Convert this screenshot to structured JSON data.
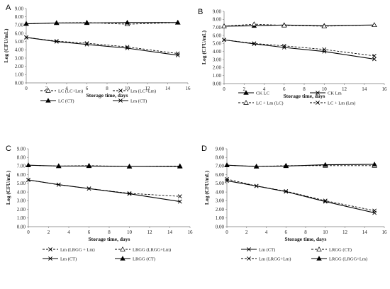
{
  "chart_data": [
    {
      "panel": "A",
      "type": "line",
      "xlabel": "Storage time, days",
      "ylabel": "Log (CFU/mL)",
      "xlim": [
        0,
        16
      ],
      "xticks": [
        0,
        2,
        4,
        6,
        8,
        10,
        12,
        14,
        16
      ],
      "ylim": [
        0,
        9
      ],
      "yticks": [
        "0.00",
        "1.00",
        "2.00",
        "3.00",
        "4.00",
        "5.00",
        "6.00",
        "7.00",
        "8.00",
        "9.00"
      ],
      "x": [
        0,
        3,
        6,
        10,
        15
      ],
      "legend_position": "bottom",
      "series": [
        {
          "name": "LC (LC+Lm)",
          "style": "dash",
          "marker": "triangle-open",
          "values": [
            7.15,
            7.25,
            7.3,
            7.1,
            7.3
          ]
        },
        {
          "name": "Lm (LC+Lm)",
          "style": "dash",
          "marker": "x",
          "values": [
            5.5,
            5.05,
            4.8,
            4.35,
            3.55
          ]
        },
        {
          "name": "LC (CT)",
          "style": "solid",
          "marker": "triangle-filled",
          "values": [
            7.15,
            7.25,
            7.25,
            7.3,
            7.3
          ]
        },
        {
          "name": "Lm (CT)",
          "style": "solid",
          "marker": "x",
          "values": [
            5.5,
            5.0,
            4.65,
            4.2,
            3.35
          ]
        }
      ]
    },
    {
      "panel": "B",
      "type": "line",
      "xlabel": "Storage time, days",
      "ylabel": "Log (CFU/mL)",
      "xlim": [
        0,
        16
      ],
      "xticks": [
        0,
        2,
        4,
        6,
        8,
        10,
        12,
        14,
        16
      ],
      "ylim": [
        0,
        9
      ],
      "yticks": [
        "0.00",
        "1.00",
        "2.00",
        "3.00",
        "4.00",
        "5.00",
        "6.00",
        "7.00",
        "8.00",
        "9.00"
      ],
      "x": [
        0,
        3,
        6,
        10,
        15
      ],
      "legend_position": "bottom",
      "series": [
        {
          "name": "CK LC",
          "style": "solid",
          "marker": "triangle-filled",
          "values": [
            7.15,
            7.2,
            7.3,
            7.2,
            7.3
          ]
        },
        {
          "name": "CK Lm",
          "style": "solid",
          "marker": "x",
          "values": [
            5.45,
            4.95,
            4.5,
            4.0,
            3.05
          ]
        },
        {
          "name": "LC + Lm (LC)",
          "style": "dash",
          "marker": "triangle-open",
          "values": [
            7.15,
            7.4,
            7.25,
            7.15,
            7.3
          ]
        },
        {
          "name": "LC + Lm (Lm)",
          "style": "dash",
          "marker": "x",
          "values": [
            5.45,
            5.0,
            4.7,
            4.25,
            3.45
          ]
        }
      ]
    },
    {
      "panel": "C",
      "type": "line",
      "xlabel": "Storage time, days",
      "ylabel": "Log (CFU/mL)",
      "xlim": [
        0,
        16
      ],
      "xticks": [
        0,
        2,
        4,
        6,
        8,
        10,
        12,
        14,
        16
      ],
      "ylim": [
        0,
        9
      ],
      "yticks": [
        "0.00",
        "1.00",
        "2.00",
        "3.00",
        "4.00",
        "5.00",
        "6.00",
        "7.00",
        "8.00",
        "9.00"
      ],
      "x": [
        0,
        3,
        6,
        10,
        15
      ],
      "legend_position": "bottom",
      "series": [
        {
          "name": "Lm (LRGG + Lm)",
          "style": "dash",
          "marker": "x",
          "values": [
            5.4,
            4.85,
            4.4,
            3.85,
            3.5
          ]
        },
        {
          "name": "LRGG (LRGG+Lm)",
          "style": "dash",
          "marker": "triangle-open",
          "values": [
            7.1,
            7.0,
            7.05,
            6.95,
            7.0
          ]
        },
        {
          "name": "Lm (CT)",
          "style": "solid",
          "marker": "x",
          "values": [
            5.4,
            4.85,
            4.4,
            3.8,
            2.9
          ]
        },
        {
          "name": "LRGG (CT)",
          "style": "solid",
          "marker": "triangle-filled",
          "values": [
            7.1,
            7.0,
            7.0,
            6.95,
            6.95
          ]
        }
      ]
    },
    {
      "panel": "D",
      "type": "line",
      "xlabel": "Storage time, days",
      "ylabel": "Log (CFU/mL)",
      "xlim": [
        0,
        16
      ],
      "xticks": [
        0,
        2,
        4,
        6,
        8,
        10,
        12,
        14,
        16
      ],
      "ylim": [
        0,
        9
      ],
      "yticks": [
        "0.00",
        "1.00",
        "2.00",
        "3.00",
        "4.00",
        "5.00",
        "6.00",
        "7.00",
        "8.00",
        "9.00"
      ],
      "x": [
        0,
        3,
        6,
        10,
        15
      ],
      "legend_position": "bottom",
      "series": [
        {
          "name": "Lm (CT)",
          "style": "solid",
          "marker": "x",
          "values": [
            5.3,
            4.7,
            4.05,
            2.9,
            1.6
          ]
        },
        {
          "name": "LRGG (CT)",
          "style": "dash",
          "marker": "triangle-open",
          "values": [
            7.1,
            6.95,
            7.05,
            7.05,
            7.05
          ]
        },
        {
          "name": "Lm (LRGG+Lm)",
          "style": "dash",
          "marker": "x",
          "values": [
            5.5,
            4.7,
            4.1,
            3.0,
            1.85
          ]
        },
        {
          "name": "LRGG (LRGG+Lm)",
          "style": "solid",
          "marker": "triangle-filled",
          "values": [
            7.1,
            6.95,
            7.0,
            7.15,
            7.2
          ]
        }
      ]
    }
  ]
}
